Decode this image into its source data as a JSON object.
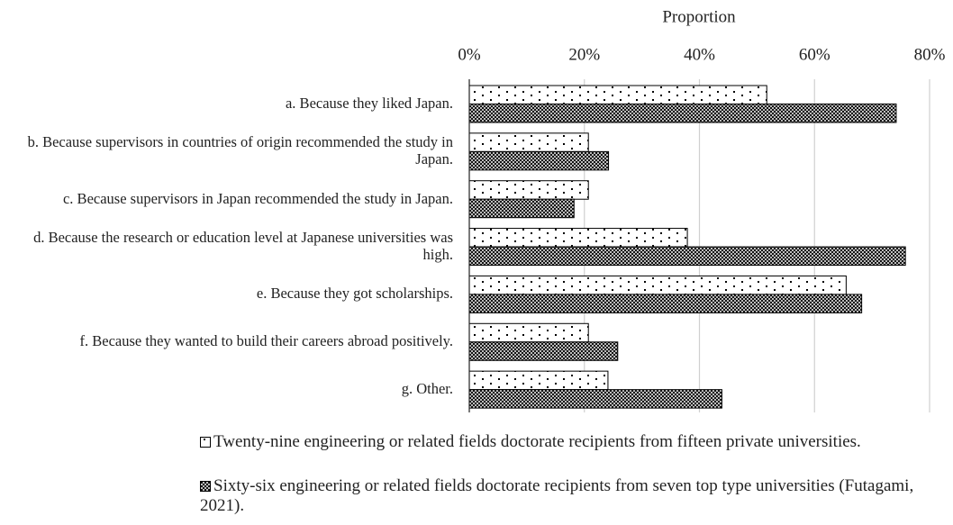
{
  "chart_data": {
    "type": "bar",
    "orientation": "horizontal",
    "xlabel": "Proportion",
    "categories": [
      "a. Because they liked Japan.",
      "b. Because supervisors in countries of origin recommended the study in Japan.",
      "c. Because supervisors in Japan recommended the study in Japan.",
      "d. Because the research or education level at Japanese universities was high.",
      "e. Because they got scholarships.",
      "f. Because they wanted to build their careers abroad positively.",
      "g. Other."
    ],
    "series": [
      {
        "name": "Twenty-nine engineering or related fields doctorate recipients from fifteen private universities.",
        "color": "#000000",
        "pattern": "dots",
        "values": [
          51.7,
          20.7,
          20.7,
          37.9,
          65.5,
          20.7,
          24.1
        ]
      },
      {
        "name": "Sixty-six engineering or related fields doctorate recipients from seven top type universities (Futagami, 2021).",
        "color": "#000000",
        "pattern": "crosshatch",
        "values": [
          74.2,
          24.2,
          18.2,
          75.8,
          68.2,
          25.8,
          43.9
        ]
      }
    ],
    "xlim": [
      0,
      80
    ],
    "xticks": [
      {
        "value": 0,
        "label": "0%"
      },
      {
        "value": 20,
        "label": "20%"
      },
      {
        "value": 40,
        "label": "40%"
      },
      {
        "value": 60,
        "label": "60%"
      },
      {
        "value": 80,
        "label": "80%"
      }
    ],
    "grid": true,
    "legend": "bottom"
  }
}
